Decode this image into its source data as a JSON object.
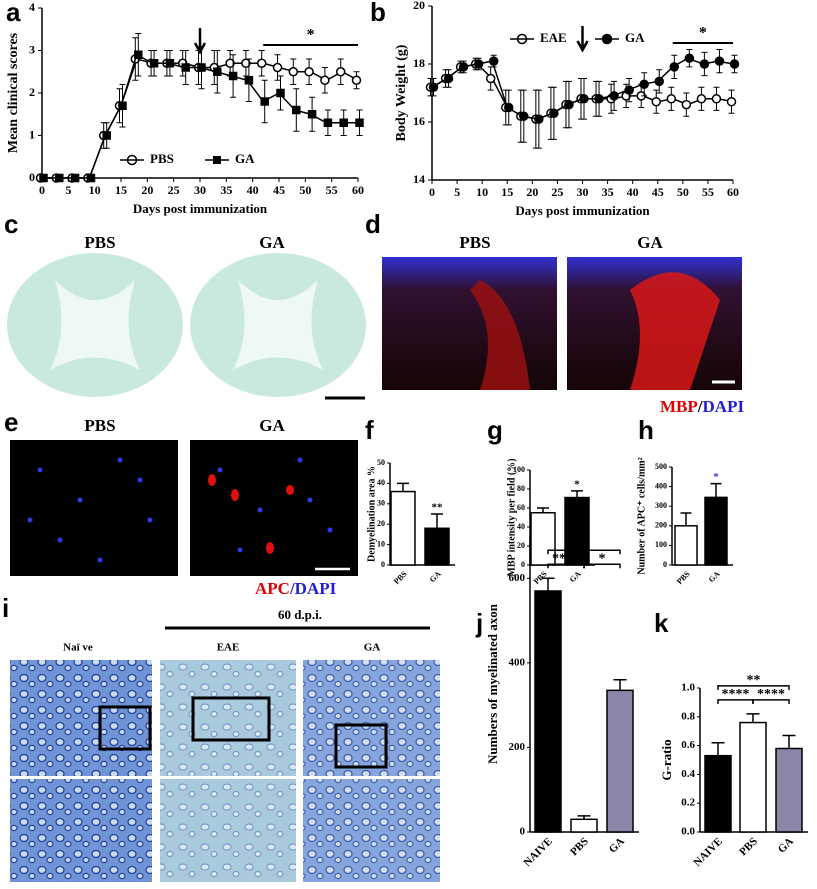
{
  "labels": {
    "panels": [
      "a",
      "b",
      "c",
      "d",
      "e",
      "f",
      "g",
      "h",
      "i",
      "j",
      "k"
    ],
    "c": {
      "left": "PBS",
      "right": "GA"
    },
    "d": {
      "left": "PBS",
      "right": "GA",
      "stain": [
        "MBP",
        "/",
        "DAPI"
      ]
    },
    "e": {
      "left": "PBS",
      "right": "GA",
      "stain": [
        "APC",
        "/DAPI"
      ]
    },
    "i": {
      "title": "60 d.p.i.",
      "columns": [
        "Naï ve",
        "EAE",
        "GA"
      ]
    }
  },
  "chart_data": [
    {
      "type": "line",
      "x_label": "Days post immunization",
      "y_label": "Mean clinical scores",
      "x": [
        0,
        3,
        6,
        9,
        12,
        15,
        18,
        21,
        24,
        27,
        30,
        33,
        36,
        39,
        42,
        45,
        48,
        51,
        54,
        57,
        60
      ],
      "xlim": [
        0,
        60
      ],
      "xticks": [
        0,
        5,
        10,
        15,
        20,
        25,
        30,
        35,
        40,
        45,
        50,
        55,
        60
      ],
      "ylim": [
        0,
        4
      ],
      "yticks": [
        0,
        1,
        2,
        3,
        4
      ],
      "legend": "bottom",
      "series": [
        {
          "name": "PBS",
          "marker": "open-circle",
          "color": "#000000",
          "values": [
            0,
            0,
            0,
            0,
            1.0,
            1.7,
            2.8,
            2.7,
            2.7,
            2.7,
            2.6,
            2.6,
            2.7,
            2.7,
            2.7,
            2.6,
            2.5,
            2.5,
            2.3,
            2.5,
            2.3
          ],
          "errors": [
            0,
            0,
            0,
            0,
            0.3,
            0.4,
            0.5,
            0.3,
            0.3,
            0.3,
            0.4,
            0.4,
            0.3,
            0.3,
            0.3,
            0.3,
            0.3,
            0.3,
            0.3,
            0.3,
            0.2
          ]
        },
        {
          "name": "GA",
          "marker": "square",
          "color": "#000000",
          "values": [
            0,
            0,
            0,
            0,
            1.0,
            1.7,
            2.9,
            2.7,
            2.7,
            2.6,
            2.6,
            2.5,
            2.4,
            2.3,
            1.8,
            2.0,
            1.6,
            1.5,
            1.3,
            1.3,
            1.3
          ],
          "errors": [
            0,
            0,
            0,
            0,
            0.3,
            0.5,
            0.5,
            0.3,
            0.3,
            0.4,
            0.5,
            0.5,
            0.5,
            0.5,
            0.5,
            0.4,
            0.5,
            0.4,
            0.3,
            0.3,
            0.3
          ]
        }
      ],
      "arrow_x": 30,
      "significance": {
        "from": 42,
        "to": 60,
        "label": "*"
      }
    },
    {
      "type": "line",
      "x_label": "Days post immunization",
      "y_label": "Body Weight (g)",
      "x": [
        0,
        3,
        6,
        9,
        12,
        15,
        18,
        21,
        24,
        27,
        30,
        33,
        36,
        39,
        42,
        45,
        48,
        51,
        54,
        57,
        60
      ],
      "xlim": [
        0,
        60
      ],
      "xticks": [
        0,
        5,
        10,
        15,
        20,
        25,
        30,
        35,
        40,
        45,
        50,
        55,
        60
      ],
      "ylim": [
        14,
        20
      ],
      "yticks": [
        14,
        16,
        18,
        20
      ],
      "legend": "top",
      "series": [
        {
          "name": "EAE",
          "marker": "open-circle",
          "color": "#000000",
          "values": [
            17.2,
            17.5,
            17.9,
            18.0,
            17.5,
            16.5,
            16.2,
            16.1,
            16.3,
            16.6,
            16.8,
            16.8,
            16.8,
            16.9,
            16.9,
            16.7,
            16.8,
            16.6,
            16.8,
            16.8,
            16.7
          ],
          "errors": [
            0.3,
            0.3,
            0.2,
            0.2,
            0.4,
            0.6,
            0.9,
            1.0,
            0.9,
            0.8,
            0.7,
            0.6,
            0.5,
            0.4,
            0.4,
            0.4,
            0.4,
            0.4,
            0.4,
            0.4,
            0.4
          ]
        },
        {
          "name": "GA",
          "marker": "filled-circle",
          "color": "#000000",
          "values": [
            17.2,
            17.5,
            17.9,
            18.0,
            18.1,
            16.5,
            16.2,
            16.1,
            16.3,
            16.6,
            16.8,
            16.8,
            16.9,
            17.1,
            17.3,
            17.4,
            17.9,
            18.2,
            18.0,
            18.1,
            18.0
          ],
          "errors": [
            0.3,
            0.3,
            0.2,
            0.2,
            0.2,
            0.6,
            0.9,
            1.0,
            0.9,
            0.8,
            0.7,
            0.6,
            0.5,
            0.4,
            0.4,
            0.4,
            0.4,
            0.3,
            0.4,
            0.4,
            0.3
          ]
        }
      ],
      "arrow_x": 30,
      "significance": {
        "from": 48,
        "to": 60,
        "label": "*"
      }
    },
    {
      "type": "bar",
      "y_label": "Demyelination area %",
      "categories": [
        "PBS",
        "GA"
      ],
      "values": [
        36,
        18
      ],
      "errors": [
        4,
        7
      ],
      "colors": [
        "#ffffff",
        "#000000"
      ],
      "ylim": [
        0,
        50
      ],
      "yticks": [
        0,
        10,
        20,
        30,
        40,
        50
      ],
      "value_annotations": [
        null,
        "**"
      ],
      "annotation_color": "#000000"
    },
    {
      "type": "bar",
      "y_label": "MBP intensity per field (%)",
      "categories": [
        "PBS",
        "GA"
      ],
      "values": [
        55,
        71
      ],
      "errors": [
        5,
        7
      ],
      "colors": [
        "#ffffff",
        "#000000"
      ],
      "ylim": [
        0,
        100
      ],
      "yticks": [
        0,
        20,
        40,
        60,
        80,
        100
      ],
      "value_annotations": [
        null,
        "*"
      ],
      "annotation_color": "#000000"
    },
    {
      "type": "bar",
      "y_label": "Number of APC⁺ cells/mm²",
      "categories": [
        "PBS",
        "GA"
      ],
      "values": [
        200,
        345
      ],
      "errors": [
        65,
        70
      ],
      "colors": [
        "#ffffff",
        "#000000"
      ],
      "ylim": [
        0,
        500
      ],
      "yticks": [
        0,
        100,
        200,
        300,
        400,
        500
      ],
      "value_annotations": [
        null,
        "*"
      ],
      "annotation_color": "#3b3bd0"
    },
    {
      "type": "bar",
      "y_label": "Numbers of myelinated axon",
      "categories": [
        "NAIVE",
        "PBS",
        "GA"
      ],
      "values": [
        570,
        30,
        335
      ],
      "errors": [
        30,
        8,
        25
      ],
      "colors": [
        "#000000",
        "#ffffff",
        "#8a86a8"
      ],
      "ylim": [
        0,
        700
      ],
      "yticks": [
        0,
        200,
        400,
        600
      ],
      "brackets": [
        {
          "from": 0,
          "to": 1,
          "label": "****"
        },
        {
          "from": 1,
          "to": 2,
          "label": "*"
        },
        {
          "from": 0,
          "to": 2,
          "label": "*"
        }
      ]
    },
    {
      "type": "bar",
      "y_label": "G-ratio",
      "categories": [
        "NAIVE",
        "PBS",
        "GA"
      ],
      "values": [
        0.53,
        0.76,
        0.58
      ],
      "errors": [
        0.09,
        0.06,
        0.09
      ],
      "colors": [
        "#000000",
        "#ffffff",
        "#8a86a8"
      ],
      "ylim": [
        0,
        1
      ],
      "yticks": [
        {
          "value": 0,
          "label": "0.0"
        },
        0.2,
        0.4,
        0.6,
        0.8,
        {
          "value": 1,
          "label": "1.0"
        }
      ],
      "brackets": [
        {
          "from": 0,
          "to": 1,
          "label": "****"
        },
        {
          "from": 1,
          "to": 2,
          "label": "****"
        },
        {
          "from": 0,
          "to": 2,
          "label": "**"
        }
      ]
    }
  ]
}
